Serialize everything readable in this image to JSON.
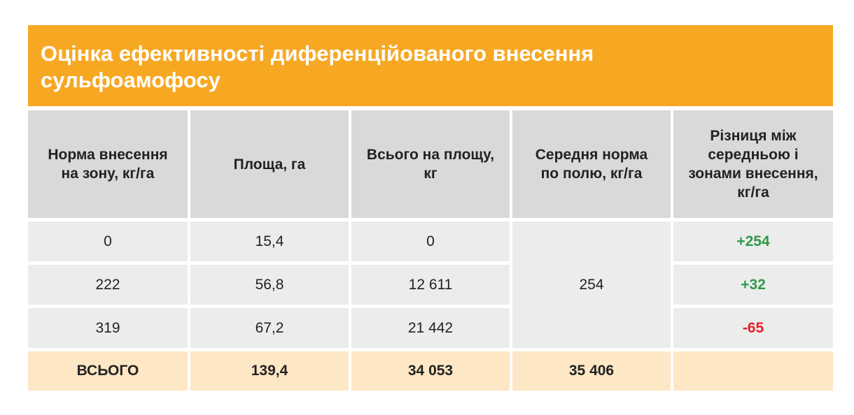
{
  "title": "Оцінка ефективності диференційованого внесення сульфоамофосу",
  "table": {
    "headers": [
      "Норма внесення на зону, кг/га",
      "Площа, га",
      "Всього на площу, кг",
      "Середня норма по полю, кг/га",
      "Різниця між середньою і зонами внесення, кг/га"
    ],
    "rows": [
      [
        "0",
        "15,4",
        "0"
      ],
      [
        "222",
        "56,8",
        "12 611"
      ],
      [
        "319",
        "67,2",
        "21 442"
      ]
    ],
    "average": "254",
    "differences": [
      "+254",
      "+32",
      "-65"
    ],
    "total": [
      "ВСЬОГО",
      "139,4",
      "34 053",
      "35 406"
    ]
  }
}
